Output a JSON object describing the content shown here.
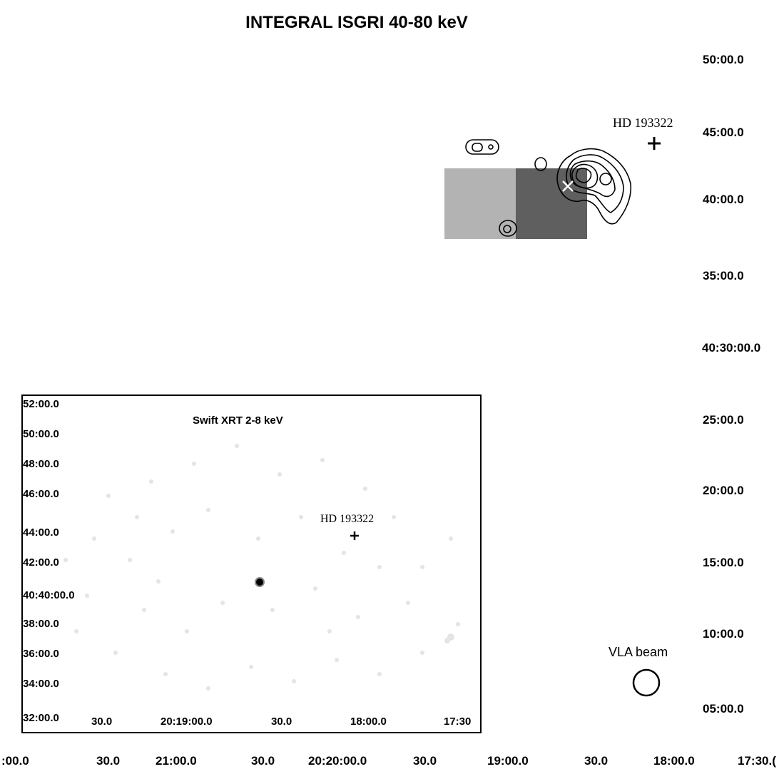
{
  "title": "INTEGRAL ISGRI 40-80 keV",
  "main": {
    "y_ticks": [
      "50:00.0",
      "45:00.0",
      "40:00.0",
      "35:00.0",
      "40:30:00.0",
      "25:00.0",
      "20:00.0",
      "15:00.0",
      "10:00.0",
      "05:00.0"
    ],
    "x_ticks": [
      ":00.0",
      "30.0",
      "21:00.0",
      "30.0",
      "20:20:00.0",
      "30.0",
      "19:00.0",
      "30.0",
      "18:00.0",
      "17:30.("
    ],
    "star_label": "HD 193322",
    "beam_label": "VLA beam"
  },
  "inset": {
    "title": "Swift XRT 2-8 keV",
    "y_ticks": [
      "52:00.0",
      "50:00.0",
      "48:00.0",
      "46:00.0",
      "44:00.0",
      "42:00.0",
      "40:40:00.0",
      "38:00.0",
      "36:00.0",
      "34:00.0",
      "32:00.0"
    ],
    "x_ticks": [
      "30.0",
      "20:19:00.0",
      "30.0",
      "18:00.0",
      "17:30"
    ],
    "star_label": "HD 193322"
  }
}
